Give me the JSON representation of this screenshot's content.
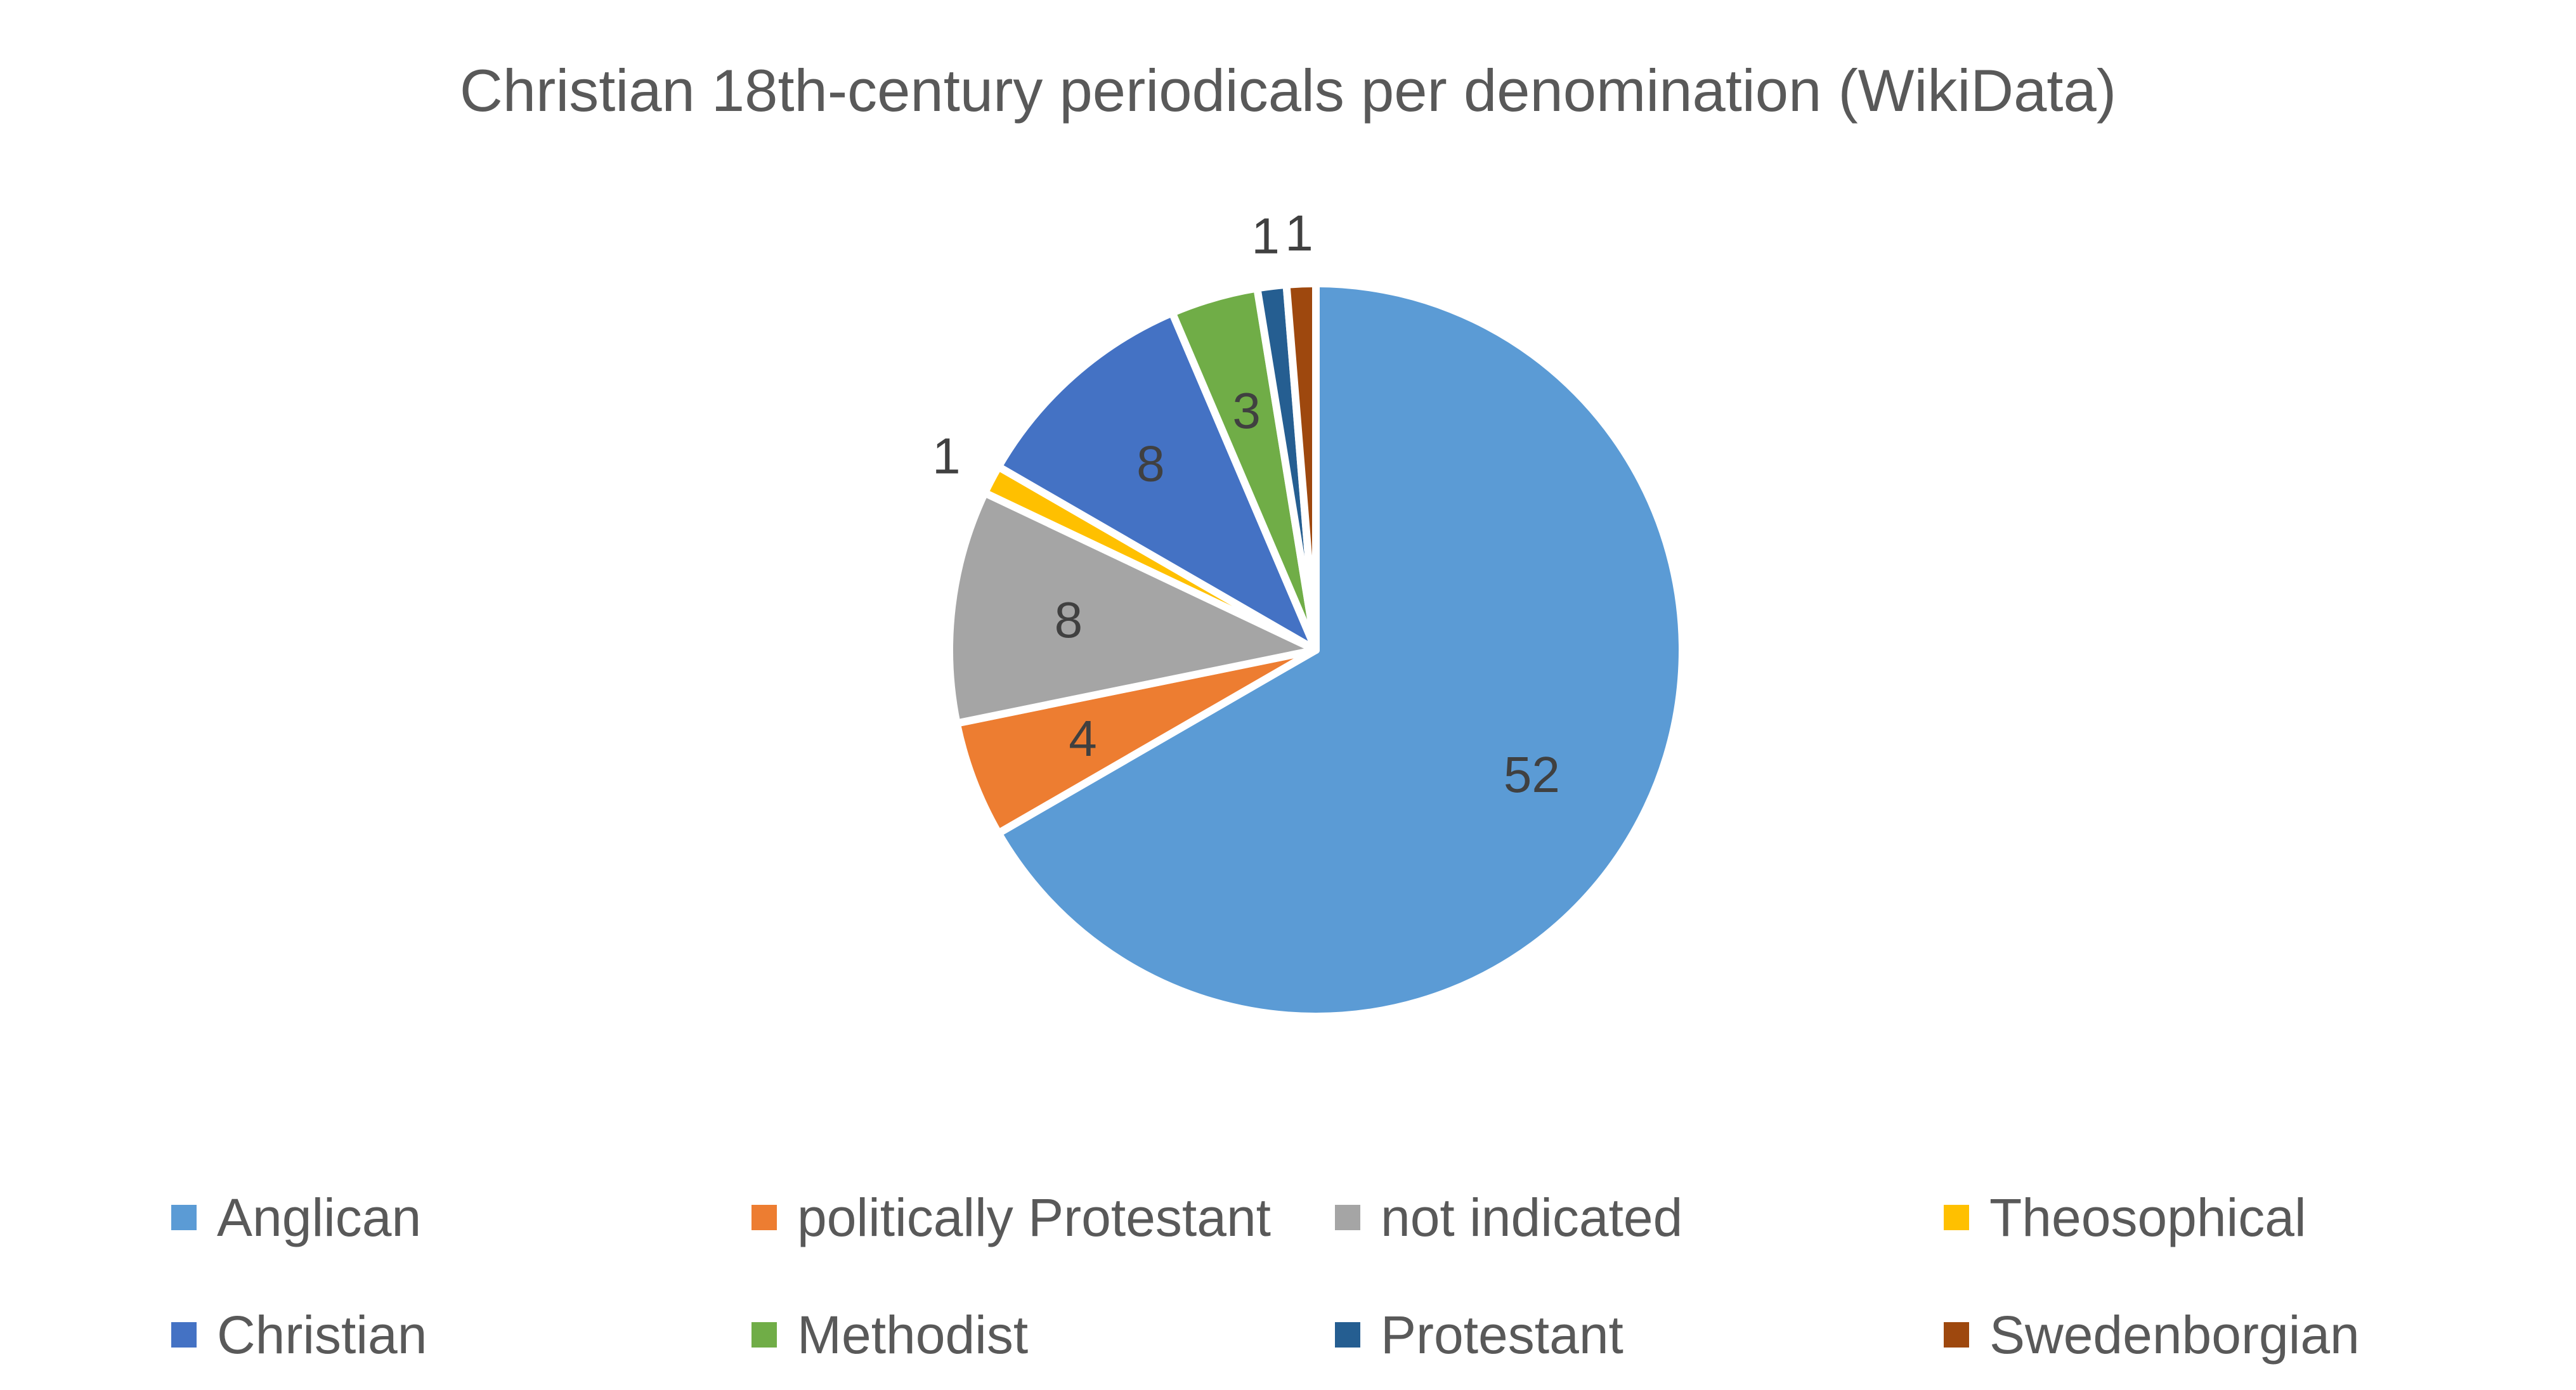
{
  "chart_data": {
    "type": "pie",
    "title": "Christian 18th-century periodicals per denomination (WikiData)",
    "legend_position": "bottom",
    "slices": [
      {
        "label": "Anglican",
        "value": 52,
        "color": "#5B9BD5"
      },
      {
        "label": "politically Protestant",
        "value": 4,
        "color": "#ED7D31"
      },
      {
        "label": "not indicated",
        "value": 8,
        "color": "#A5A5A5"
      },
      {
        "label": "Theosophical",
        "value": 1,
        "color": "#FFC000"
      },
      {
        "label": "Christian",
        "value": 8,
        "color": "#4472C4"
      },
      {
        "label": "Methodist",
        "value": 3,
        "color": "#70AD47"
      },
      {
        "label": "Protestant",
        "value": 1,
        "color": "#255E91"
      },
      {
        "label": "Swedenborgian",
        "value": 1,
        "color": "#9E480E"
      }
    ]
  }
}
